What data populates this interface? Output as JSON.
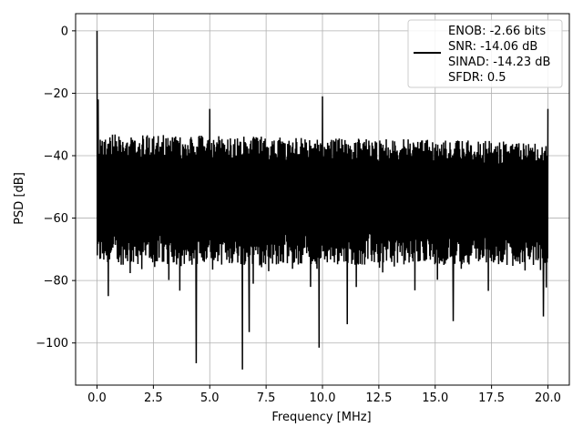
{
  "chart_data": {
    "type": "line",
    "xlabel": "Frequency [MHz]",
    "ylabel": "PSD [dB]",
    "xlim": [
      -0.95,
      20.95
    ],
    "ylim": [
      -113.5,
      5.5
    ],
    "xticks": [
      0.0,
      2.5,
      5.0,
      7.5,
      10.0,
      12.5,
      15.0,
      17.5,
      20.0
    ],
    "xtick_labels": [
      "0.0",
      "2.5",
      "5.0",
      "7.5",
      "10.0",
      "12.5",
      "15.0",
      "17.5",
      "20.0"
    ],
    "yticks": [
      0,
      -20,
      -40,
      -60,
      -80,
      -100
    ],
    "ytick_labels": [
      "0",
      "−20",
      "−40",
      "−60",
      "−80",
      "−100"
    ],
    "grid": true,
    "legend_position": "top-right",
    "legend_lines": [
      "ENOB: -2.66 bits",
      "SNR: -14.06 dB",
      "SINAD: -14.23 dB",
      "SFDR: 0.5"
    ],
    "series_color": "#000000",
    "series": [
      {
        "description": "noise-like power spectral density, envelope between roughly -33 dB and -75 dB",
        "noise_upper_envelope_db": -33,
        "noise_lower_envelope_db": -75,
        "peaks": [
          {
            "x": 0.0,
            "y": 0
          },
          {
            "x": 0.05,
            "y": -22
          },
          {
            "x": 5.0,
            "y": -25
          },
          {
            "x": 10.0,
            "y": -21
          },
          {
            "x": 20.0,
            "y": -25
          }
        ],
        "dips": [
          {
            "x": 0.5,
            "y": -85
          },
          {
            "x": 4.4,
            "y": -106.5
          },
          {
            "x": 6.45,
            "y": -108.5
          },
          {
            "x": 6.75,
            "y": -96.5
          },
          {
            "x": 9.85,
            "y": -101.5
          },
          {
            "x": 11.1,
            "y": -94
          },
          {
            "x": 15.8,
            "y": -93
          },
          {
            "x": 19.8,
            "y": -91.5
          }
        ],
        "x_range": [
          0.0,
          20.0
        ]
      }
    ]
  }
}
